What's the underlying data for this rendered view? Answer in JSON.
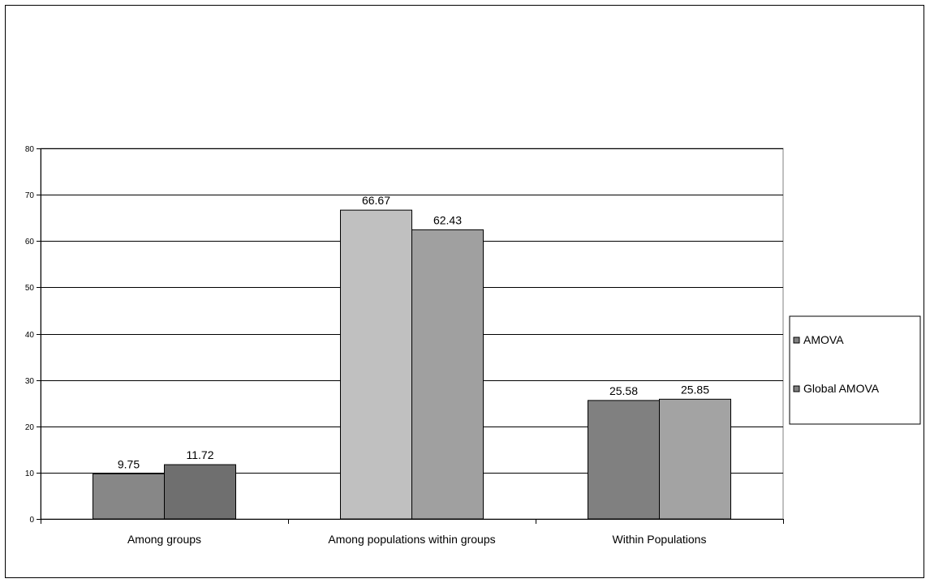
{
  "chart_data": {
    "type": "bar",
    "categories": [
      "Among groups",
      "Among populations within groups",
      "Within Populations"
    ],
    "series": [
      {
        "name": "AMOVA",
        "values": [
          9.75,
          66.67,
          25.58
        ]
      },
      {
        "name": "Global AMOVA",
        "values": [
          11.72,
          62.43,
          25.85
        ]
      }
    ],
    "bar_colors": [
      [
        "#878787",
        "#6f6f6f"
      ],
      [
        "#c0c0c0",
        "#a0a0a0"
      ],
      [
        "#808080",
        "#a3a3a3"
      ]
    ],
    "legend_colors": [
      "#808080",
      "#808080"
    ],
    "ylim": [
      0,
      80
    ],
    "yticks": [
      0,
      10,
      20,
      30,
      40,
      50,
      60,
      70,
      80
    ],
    "grid": true,
    "legend_position": "right",
    "title": "",
    "xlabel": "",
    "ylabel": ""
  }
}
